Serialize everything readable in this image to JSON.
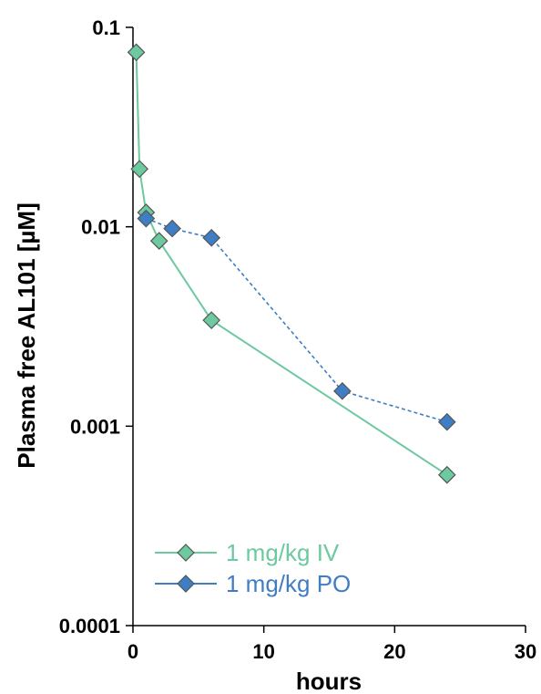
{
  "chart_data": {
    "type": "line",
    "title": "",
    "xlabel": "hours",
    "ylabel": "Plasma free AL101 [µM]",
    "xlim": [
      0,
      30
    ],
    "ylim": [
      0.0001,
      0.1
    ],
    "yscale": "log",
    "grid": false,
    "legend_position": "bottom-left",
    "x_ticks": [
      "0",
      "10",
      "20",
      "30"
    ],
    "y_ticks": [
      "0.0001",
      "0.001",
      "0.01",
      "0.1"
    ],
    "series": [
      {
        "name": "1 mg/kg IV",
        "color": "#6cc9a0",
        "line_style": "solid",
        "marker": "diamond",
        "x": [
          0.25,
          0.5,
          1,
          2,
          6,
          24
        ],
        "y": [
          0.075,
          0.0195,
          0.0118,
          0.0085,
          0.0034,
          0.00057
        ]
      },
      {
        "name": "1 mg/kg PO",
        "color": "#3f7dc4",
        "line_style": "dashed",
        "marker": "diamond",
        "x": [
          1,
          3,
          6,
          16,
          24
        ],
        "y": [
          0.011,
          0.0098,
          0.0088,
          0.0015,
          0.00105
        ]
      }
    ]
  }
}
